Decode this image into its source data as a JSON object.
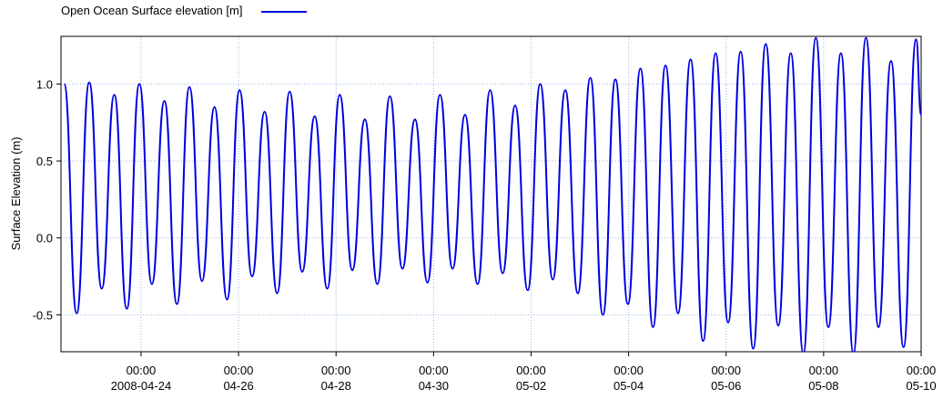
{
  "chart_data": {
    "type": "line",
    "y_label": "Surface Elevation (m)",
    "legend": "top-left",
    "grid": true,
    "xlim": [
      "2008-04-22 08:36",
      "2008-05-10 00:00"
    ],
    "xticks": [
      {
        "value": "2008-04-24 00:00",
        "label": [
          "00:00",
          "2008-04-24"
        ]
      },
      {
        "value": "2008-04-26 00:00",
        "label": [
          "00:00",
          "04-26"
        ]
      },
      {
        "value": "2008-04-28 00:00",
        "label": [
          "00:00",
          "04-28"
        ]
      },
      {
        "value": "2008-04-30 00:00",
        "label": [
          "00:00",
          "04-30"
        ]
      },
      {
        "value": "2008-05-02 00:00",
        "label": [
          "00:00",
          "05-02"
        ]
      },
      {
        "value": "2008-05-04 00:00",
        "label": [
          "00:00",
          "05-04"
        ]
      },
      {
        "value": "2008-05-06 00:00",
        "label": [
          "00:00",
          "05-06"
        ]
      },
      {
        "value": "2008-05-08 00:00",
        "label": [
          "00:00",
          "05-08"
        ]
      },
      {
        "value": "2008-05-10 00:00",
        "label": [
          "00:00",
          "05-10"
        ]
      }
    ],
    "ylim": [
      -0.74,
      1.31
    ],
    "yticks": [
      -0.5,
      {
        "value": 0,
        "label": "0.0"
      },
      0.5,
      {
        "value": 1,
        "label": "1.0"
      }
    ],
    "x": [
      "2008-04-22 10:10",
      "2008-04-22 16:20",
      "2008-04-22 22:30",
      "2008-04-23 04:40",
      "2008-04-23 10:50",
      "2008-04-23 17:00",
      "2008-04-23 23:10",
      "2008-04-24 05:20",
      "2008-04-24 11:30",
      "2008-04-24 17:40",
      "2008-04-24 23:50",
      "2008-04-25 06:00",
      "2008-04-25 12:10",
      "2008-04-25 18:20",
      "2008-04-26 00:30",
      "2008-04-26 06:40",
      "2008-04-26 12:50",
      "2008-04-26 19:00",
      "2008-04-27 01:10",
      "2008-04-27 07:20",
      "2008-04-27 13:30",
      "2008-04-27 19:40",
      "2008-04-28 01:50",
      "2008-04-28 08:00",
      "2008-04-28 14:10",
      "2008-04-28 20:20",
      "2008-04-29 02:30",
      "2008-04-29 08:40",
      "2008-04-29 14:50",
      "2008-04-29 21:00",
      "2008-04-30 03:10",
      "2008-04-30 09:20",
      "2008-04-30 15:30",
      "2008-04-30 21:40",
      "2008-05-01 03:50",
      "2008-05-01 10:00",
      "2008-05-01 16:10",
      "2008-05-01 22:20",
      "2008-05-02 04:30",
      "2008-05-02 10:40",
      "2008-05-02 16:50",
      "2008-05-02 23:00",
      "2008-05-03 05:10",
      "2008-05-03 11:20",
      "2008-05-03 17:30",
      "2008-05-03 23:40",
      "2008-05-04 05:50",
      "2008-05-04 12:00",
      "2008-05-04 18:10",
      "2008-05-05 00:20",
      "2008-05-05 06:30",
      "2008-05-05 12:40",
      "2008-05-05 18:50",
      "2008-05-06 01:00",
      "2008-05-06 07:10",
      "2008-05-06 13:20",
      "2008-05-06 19:30",
      "2008-05-07 01:40",
      "2008-05-07 07:50",
      "2008-05-07 14:00",
      "2008-05-07 20:10",
      "2008-05-08 02:20",
      "2008-05-08 08:30",
      "2008-05-08 14:40",
      "2008-05-08 20:50",
      "2008-05-09 03:00",
      "2008-05-09 09:10",
      "2008-05-09 15:20",
      "2008-05-09 21:30",
      "2008-05-10 00:00"
    ],
    "series": [
      {
        "name": "Open Ocean Surface elevation [m]",
        "color": "#0000e0",
        "values": [
          1.0,
          -0.49,
          1.01,
          -0.33,
          0.93,
          -0.46,
          1.0,
          -0.3,
          0.89,
          -0.43,
          0.98,
          -0.28,
          0.85,
          -0.4,
          0.96,
          -0.25,
          0.82,
          -0.36,
          0.95,
          -0.22,
          0.79,
          -0.33,
          0.93,
          -0.21,
          0.77,
          -0.3,
          0.92,
          -0.2,
          0.77,
          -0.29,
          0.93,
          -0.2,
          0.8,
          -0.3,
          0.96,
          -0.23,
          0.86,
          -0.34,
          1.0,
          -0.27,
          0.96,
          -0.36,
          1.04,
          -0.5,
          1.03,
          -0.43,
          1.1,
          -0.58,
          1.12,
          -0.49,
          1.16,
          -0.67,
          1.2,
          -0.55,
          1.21,
          -0.72,
          1.26,
          -0.57,
          1.2,
          -0.75,
          1.3,
          -0.58,
          1.2,
          -0.75,
          1.3,
          -0.58,
          1.15,
          -0.71,
          1.29,
          0.8
        ]
      }
    ]
  }
}
